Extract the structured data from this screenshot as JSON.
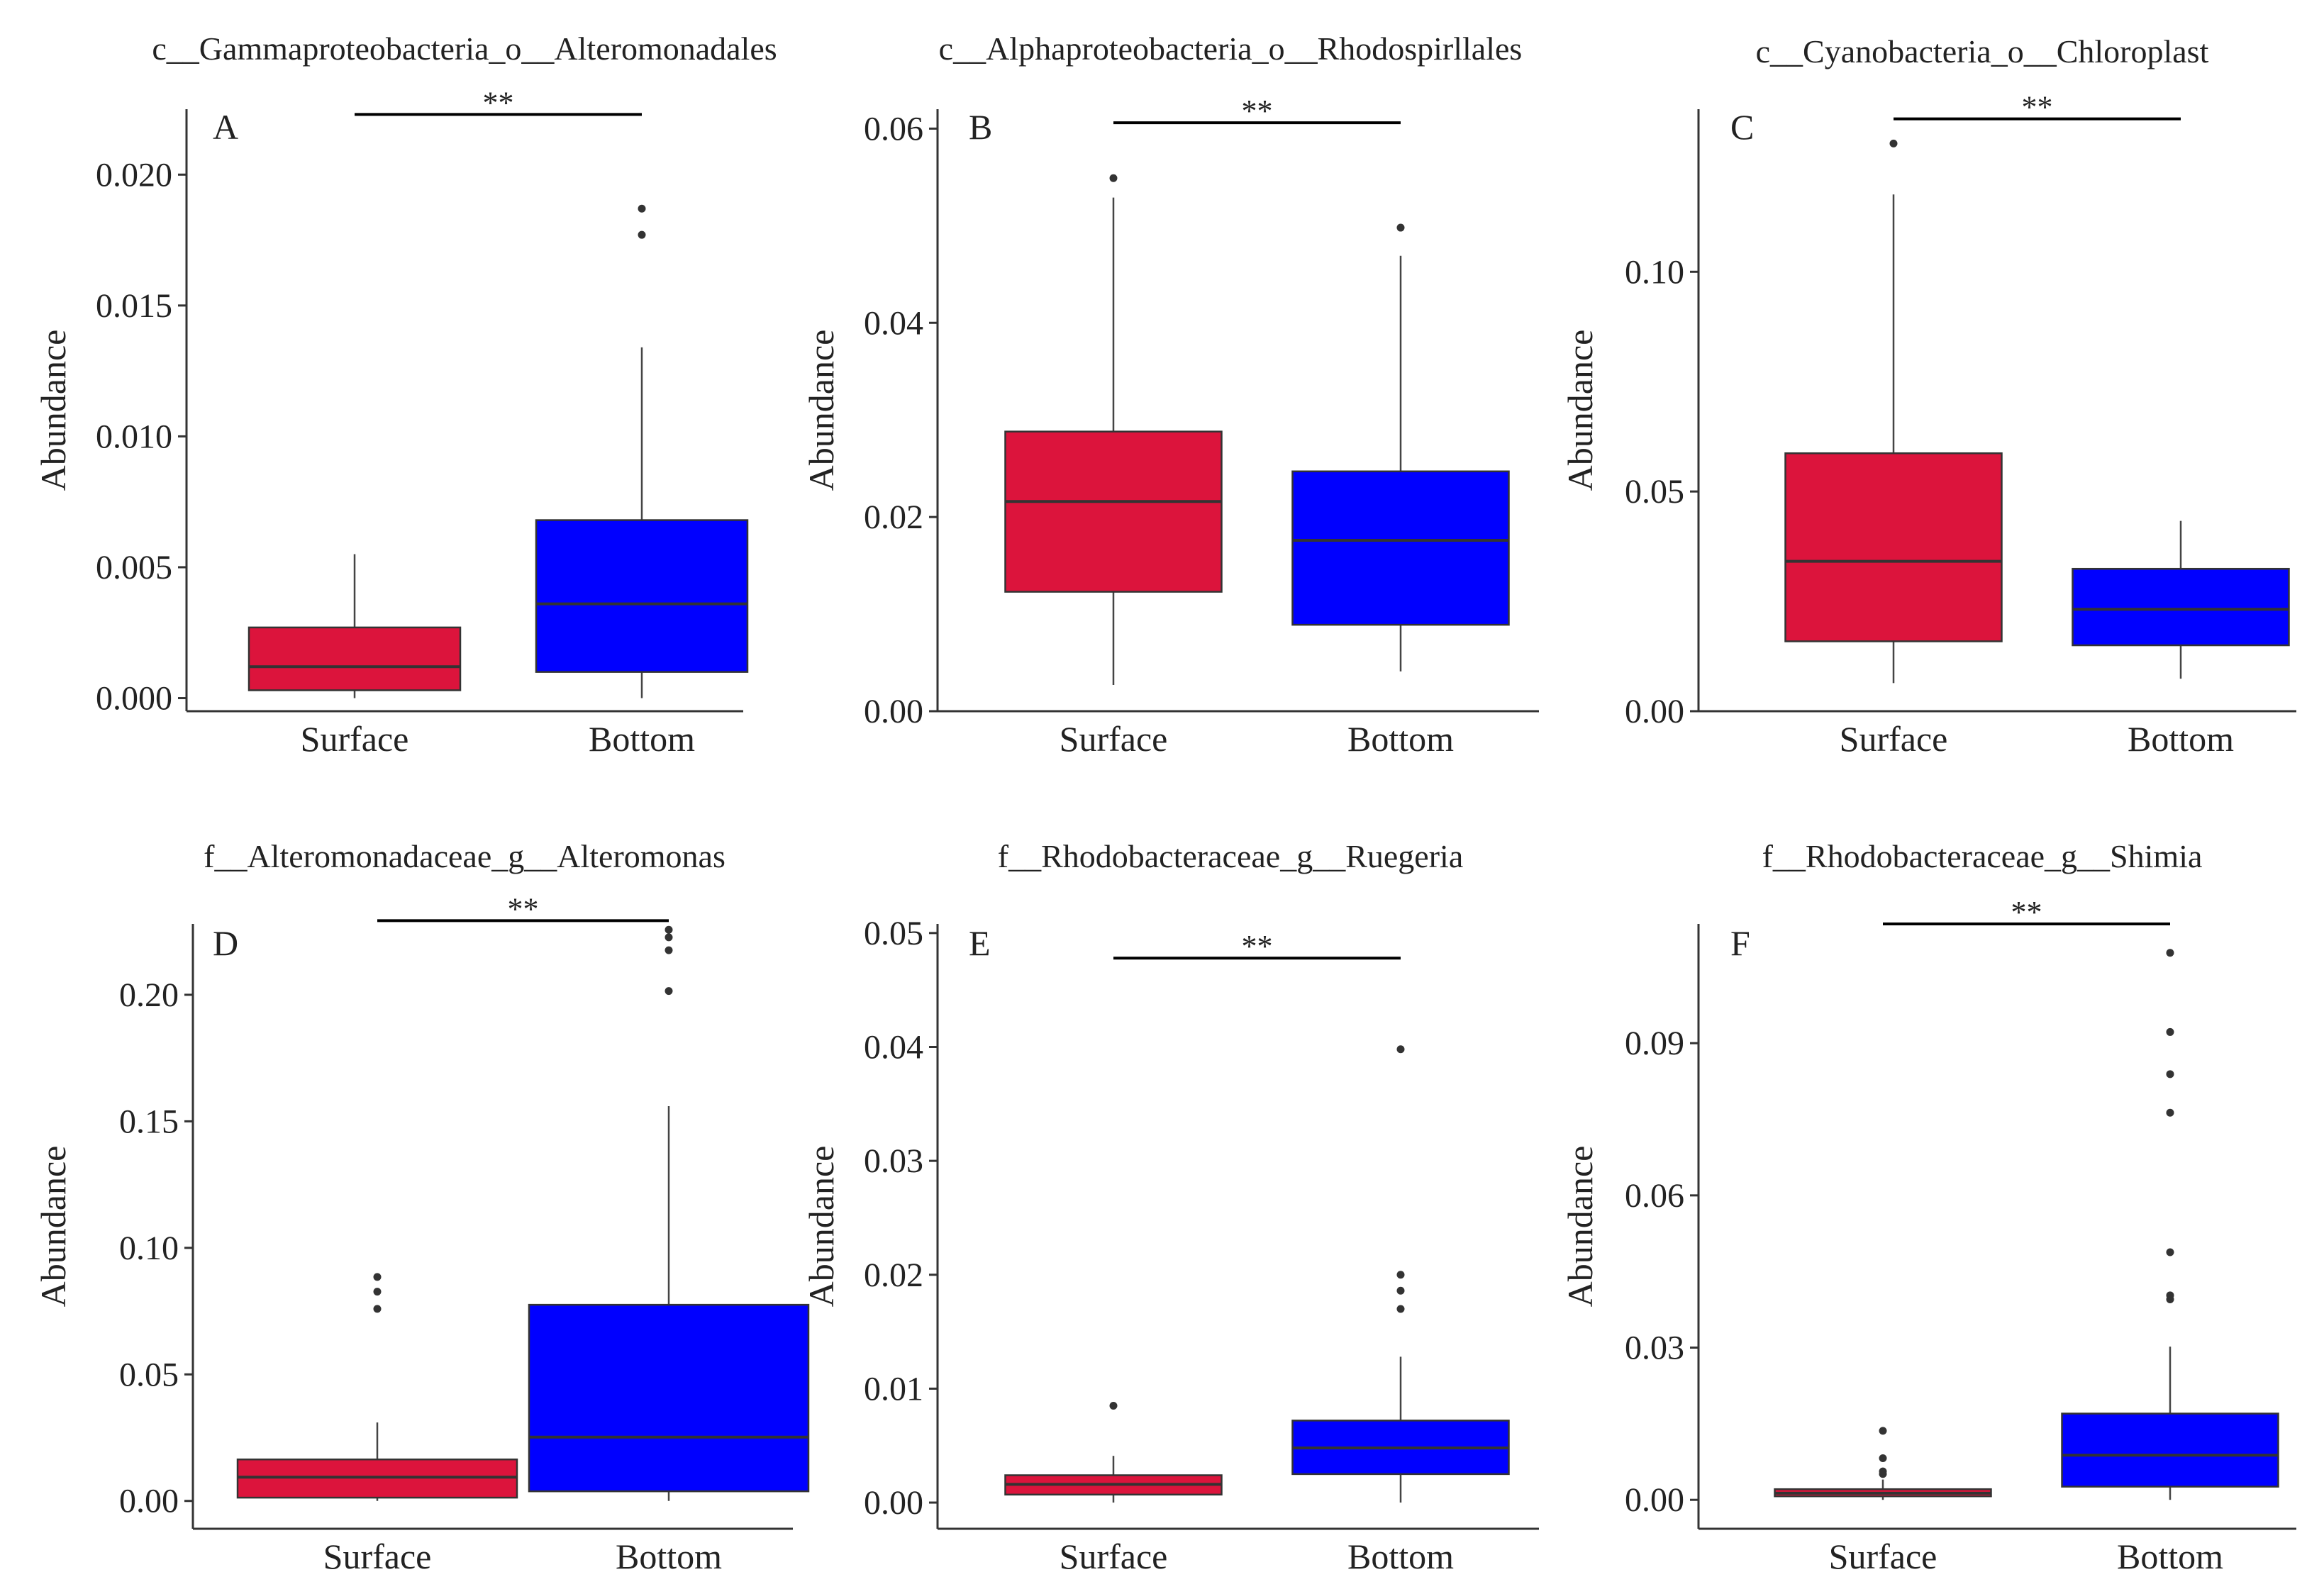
{
  "figure": {
    "background": "#ffffff",
    "surface_color": "#DC143C",
    "bottom_color": "#0000FF"
  },
  "chart_data": [
    {
      "type": "box",
      "panel": "A",
      "title": "c__Gammaproteobacteria_o__Alteromonadales",
      "xlabel": "",
      "ylabel": "Abundance",
      "categories": [
        "Surface",
        "Bottom"
      ],
      "ylim": [
        -0.0005,
        0.0225
      ],
      "yticks": [
        0.0,
        0.005,
        0.01,
        0.015,
        0.02
      ],
      "ytick_labels": [
        "0.000",
        "0.005",
        "0.010",
        "0.015",
        "0.020"
      ],
      "boxes": [
        {
          "name": "Surface",
          "color": "#DC143C",
          "min": 0.0,
          "q1": 0.0003,
          "median": 0.0012,
          "q3": 0.0027,
          "max": 0.0055,
          "outliers": []
        },
        {
          "name": "Bottom",
          "color": "#0000FF",
          "min": 0.0,
          "q1": 0.001,
          "median": 0.0036,
          "q3": 0.0068,
          "max": 0.0134,
          "outliers": [
            0.0177,
            0.0187
          ]
        }
      ],
      "significance": {
        "label": "**",
        "y": 0.0223
      }
    },
    {
      "type": "box",
      "panel": "B",
      "title": "c__Alphaproteobacteria_o__Rhodospirllales",
      "xlabel": "",
      "ylabel": "Abundance",
      "categories": [
        "Surface",
        "Bottom"
      ],
      "ylim": [
        0.0,
        0.062
      ],
      "yticks": [
        0.0,
        0.02,
        0.04,
        0.06
      ],
      "ytick_labels": [
        "0.00",
        "0.02",
        "0.04",
        "0.06"
      ],
      "boxes": [
        {
          "name": "Surface",
          "color": "#DC143C",
          "min": 0.0027,
          "q1": 0.0123,
          "median": 0.0216,
          "q3": 0.0288,
          "max": 0.0529,
          "outliers": [
            0.0549
          ]
        },
        {
          "name": "Bottom",
          "color": "#0000FF",
          "min": 0.0041,
          "q1": 0.0089,
          "median": 0.0176,
          "q3": 0.0247,
          "max": 0.0469,
          "outliers": [
            0.0498
          ]
        }
      ],
      "significance": {
        "label": "**",
        "y": 0.0606
      }
    },
    {
      "type": "box",
      "panel": "C",
      "title": "c__Cyanobacteria_o__Chloroplast",
      "xlabel": "",
      "ylabel": "Abundance",
      "categories": [
        "Surface",
        "Bottom"
      ],
      "ylim": [
        0.0,
        0.137
      ],
      "yticks": [
        0.0,
        0.05,
        0.1
      ],
      "ytick_labels": [
        "0.00",
        "0.05",
        "0.10"
      ],
      "boxes": [
        {
          "name": "Surface",
          "color": "#DC143C",
          "min": 0.0064,
          "q1": 0.0159,
          "median": 0.0341,
          "q3": 0.0587,
          "max": 0.1176,
          "outliers": [
            0.1292
          ]
        },
        {
          "name": "Bottom",
          "color": "#0000FF",
          "min": 0.0074,
          "q1": 0.015,
          "median": 0.0232,
          "q3": 0.0324,
          "max": 0.0433,
          "outliers": []
        }
      ],
      "significance": {
        "label": "**",
        "y": 0.1348
      }
    },
    {
      "type": "box",
      "panel": "D",
      "title": "f__Alteromonadaceae_g__Alteromonas",
      "xlabel": "",
      "ylabel": "Abundance",
      "categories": [
        "Surface",
        "Bottom"
      ],
      "ylim": [
        -0.011,
        0.228
      ],
      "yticks": [
        0.0,
        0.05,
        0.1,
        0.15,
        0.2
      ],
      "ytick_labels": [
        "0.00",
        "0.05",
        "0.10",
        "0.15",
        "0.20"
      ],
      "boxes": [
        {
          "name": "Surface",
          "color": "#DC143C",
          "min": 0.0,
          "q1": 0.0013,
          "median": 0.0094,
          "q3": 0.0164,
          "max": 0.031,
          "outliers": [
            0.0759,
            0.0827,
            0.0885
          ]
        },
        {
          "name": "Bottom",
          "color": "#0000FF",
          "min": 0.0,
          "q1": 0.0038,
          "median": 0.0252,
          "q3": 0.0775,
          "max": 0.156,
          "outliers": [
            0.2015,
            0.2176,
            0.2227,
            0.2257
          ]
        }
      ],
      "significance": {
        "label": "**",
        "y": 0.2293
      }
    },
    {
      "type": "box",
      "panel": "E",
      "title": "f__Rhodobacteraceae_g__Ruegeria",
      "xlabel": "",
      "ylabel": "Abundance",
      "categories": [
        "Surface",
        "Bottom"
      ],
      "ylim": [
        -0.0023,
        0.0508
      ],
      "yticks": [
        0.0,
        0.01,
        0.02,
        0.03,
        0.04,
        0.05
      ],
      "ytick_labels": [
        "0.00",
        "0.01",
        "0.02",
        "0.03",
        "0.04",
        "0.05"
      ],
      "boxes": [
        {
          "name": "Surface",
          "color": "#DC143C",
          "min": 0.0,
          "q1": 0.0007,
          "median": 0.0016,
          "q3": 0.0024,
          "max": 0.0041,
          "outliers": [
            0.0085
          ]
        },
        {
          "name": "Bottom",
          "color": "#0000FF",
          "min": 0.0,
          "q1": 0.0025,
          "median": 0.0048,
          "q3": 0.0072,
          "max": 0.0128,
          "outliers": [
            0.017,
            0.0186,
            0.02,
            0.0398
          ]
        }
      ],
      "significance": {
        "label": "**",
        "y": 0.0478
      }
    },
    {
      "type": "box",
      "panel": "F",
      "title": "f__Rhodobacteraceae_g__Shimia",
      "xlabel": "",
      "ylabel": "Abundance",
      "categories": [
        "Surface",
        "Bottom"
      ],
      "ylim": [
        -0.0057,
        0.1135
      ],
      "yticks": [
        0.0,
        0.03,
        0.06,
        0.09
      ],
      "ytick_labels": [
        "0.00",
        "0.03",
        "0.06",
        "0.09"
      ],
      "boxes": [
        {
          "name": "Surface",
          "color": "#DC143C",
          "min": 0.0,
          "q1": 0.0007,
          "median": 0.0013,
          "q3": 0.0021,
          "max": 0.004,
          "outliers": [
            0.0051,
            0.0056,
            0.0082,
            0.0136
          ]
        },
        {
          "name": "Bottom",
          "color": "#0000FF",
          "min": 0.0,
          "q1": 0.0026,
          "median": 0.0088,
          "q3": 0.017,
          "max": 0.0302,
          "outliers": [
            0.0395,
            0.0403,
            0.0488,
            0.0763,
            0.0839,
            0.0922,
            0.1078
          ]
        }
      ],
      "significance": {
        "label": "**",
        "y": 0.1135
      }
    }
  ]
}
